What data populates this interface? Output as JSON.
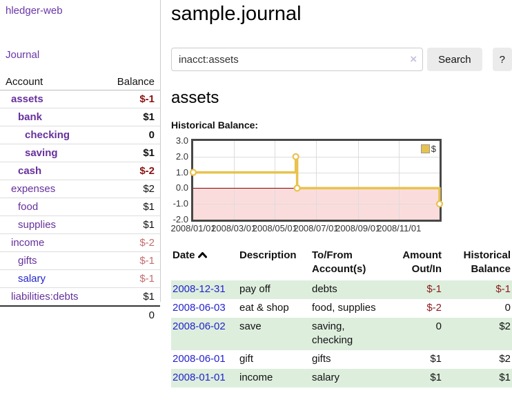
{
  "app": {
    "brand": "hledger-web"
  },
  "sidebar": {
    "nav": {
      "journal_label": "Journal"
    },
    "accounts_table": {
      "headers": {
        "account": "Account",
        "balance": "Balance"
      },
      "rows": [
        {
          "name": "assets",
          "depth": 1,
          "balance": "$-1",
          "bold": true,
          "balance_tone": "neg-strong"
        },
        {
          "name": "bank",
          "depth": 2,
          "balance": "$1",
          "bold": true,
          "balance_tone": ""
        },
        {
          "name": "checking",
          "depth": 3,
          "balance": "0",
          "bold": true,
          "balance_tone": ""
        },
        {
          "name": "saving",
          "depth": 3,
          "balance": "$1",
          "bold": true,
          "balance_tone": ""
        },
        {
          "name": "cash",
          "depth": 2,
          "balance": "$-2",
          "bold": true,
          "balance_tone": "neg-strong"
        },
        {
          "name": "expenses",
          "depth": 1,
          "balance": "$2",
          "bold": false,
          "balance_tone": ""
        },
        {
          "name": "food",
          "depth": 2,
          "balance": "$1",
          "bold": false,
          "balance_tone": ""
        },
        {
          "name": "supplies",
          "depth": 2,
          "balance": "$1",
          "bold": false,
          "balance_tone": ""
        },
        {
          "name": "income",
          "depth": 1,
          "balance": "$-2",
          "bold": false,
          "balance_tone": "neg-soft"
        },
        {
          "name": "gifts",
          "depth": 2,
          "balance": "$-1",
          "bold": false,
          "balance_tone": "neg-soft"
        },
        {
          "name": "salary",
          "depth": 2,
          "balance": "$-1",
          "bold": false,
          "balance_tone": "neg-soft",
          "link_tone": "blue"
        },
        {
          "name": "liabilities:debts",
          "depth": 1,
          "balance": "$1",
          "bold": false,
          "balance_tone": ""
        }
      ],
      "total": "0"
    }
  },
  "header": {
    "title": "sample.journal"
  },
  "search": {
    "value": "inacct:assets",
    "clear_icon": "×",
    "button_label": "Search",
    "help_label": "?"
  },
  "account_page": {
    "heading": "assets",
    "chart_title": "Historical Balance:"
  },
  "chart_data": {
    "type": "line",
    "step": true,
    "title": "Historical Balance:",
    "series": [
      {
        "name": "$",
        "color": "#e8c24d",
        "points": [
          {
            "date": "2008-01-01",
            "day": 0,
            "value": 1.0
          },
          {
            "date": "2008-06-01",
            "day": 152,
            "value": 2.0
          },
          {
            "date": "2008-06-03",
            "day": 154,
            "value": 0.0
          },
          {
            "date": "2008-12-31",
            "day": 365,
            "value": -1.0
          }
        ]
      }
    ],
    "x_range_days": [
      0,
      365
    ],
    "x_ticks": [
      {
        "label": "2008/01/01",
        "day": 0
      },
      {
        "label": "2008/03/01",
        "day": 60
      },
      {
        "label": "2008/05/01",
        "day": 121
      },
      {
        "label": "2008/07/01",
        "day": 182
      },
      {
        "label": "2008/09/01",
        "day": 244
      },
      {
        "label": "2008/11/01",
        "day": 305
      }
    ],
    "y_ticks": [
      {
        "label": "3.0",
        "value": 3
      },
      {
        "label": "2.0",
        "value": 2
      },
      {
        "label": "1.0",
        "value": 1
      },
      {
        "label": "0.0",
        "value": 0
      },
      {
        "label": "-1.0",
        "value": -1
      },
      {
        "label": "-2.0",
        "value": -2
      }
    ],
    "ylim": [
      -2,
      3
    ],
    "grid": true,
    "legend_position": "top-right",
    "negative_region_color": "#fbdcdc",
    "zero_line_color": "#8b0000",
    "gridline_color": "#dcdcdc"
  },
  "register": {
    "columns": [
      {
        "line1": "Date",
        "line2": "",
        "align": "left",
        "sorted": true
      },
      {
        "line1": "Description",
        "line2": "",
        "align": "left"
      },
      {
        "line1": "To/From",
        "line2": "Account(s)",
        "align": "left"
      },
      {
        "line1": "Amount",
        "line2": "Out/In",
        "align": "right"
      },
      {
        "line1": "Historical",
        "line2": "Balance",
        "align": "right"
      }
    ],
    "rows": [
      {
        "date": "2008-12-31",
        "description": "pay off",
        "accounts": "debts",
        "amount": "$-1",
        "amount_neg": true,
        "balance": "$-1",
        "balance_neg": true,
        "highlight": true
      },
      {
        "date": "2008-06-03",
        "description": "eat & shop",
        "accounts": "food, supplies",
        "amount": "$-2",
        "amount_neg": true,
        "balance": "0",
        "balance_neg": false,
        "highlight": false
      },
      {
        "date": "2008-06-02",
        "description": "save",
        "accounts": "saving, checking",
        "amount": "0",
        "amount_neg": false,
        "balance": "$2",
        "balance_neg": false,
        "highlight": true
      },
      {
        "date": "2008-06-01",
        "description": "gift",
        "accounts": "gifts",
        "amount": "$1",
        "amount_neg": false,
        "balance": "$2",
        "balance_neg": false,
        "highlight": false
      },
      {
        "date": "2008-01-01",
        "description": "income",
        "accounts": "salary",
        "amount": "$1",
        "amount_neg": false,
        "balance": "$1",
        "balance_neg": false,
        "highlight": true
      }
    ]
  },
  "colors": {
    "link_purple": "#66309c",
    "link_blue": "#2423cd",
    "negative_strong": "#8b1111",
    "negative_soft": "#c46d6d",
    "table_negative": "#8b1a1a",
    "row_highlight": "#ddeedd",
    "chart_line": "#e8c24d",
    "chart_negative_bg": "#fbdcdc",
    "chart_zero_line": "#8b0000",
    "chart_border": "#474747"
  }
}
